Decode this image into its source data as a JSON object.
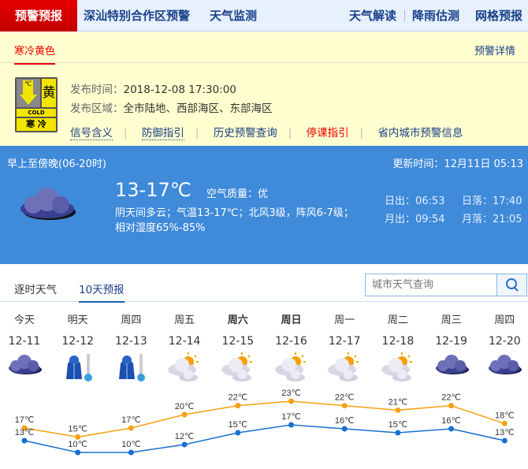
{
  "nav": {
    "active": "预警预报",
    "items": [
      "深汕特别合作区预警",
      "天气监测"
    ],
    "right": [
      "天气解读",
      "降雨估测",
      "网格预报"
    ]
  },
  "warning": {
    "tab": "寒冷黄色",
    "detail_link": "预警详情",
    "sign": {
      "unit": "℃",
      "level": "黄",
      "en": "COLD",
      "name": "寒 冷"
    },
    "time_label": "发布时间：",
    "time": "2018-12-08 17:30:00",
    "area_label": "发布区域：",
    "area": "全市陆地、西部海区、东部海区",
    "links": [
      "信号含义",
      "防御指引",
      "历史预警查询",
      "停课指引",
      "省内城市预警信息"
    ]
  },
  "today": {
    "period": "早上至傍晚(06-20时)",
    "update": "更新时间：12月11日 05:13",
    "temp": "13-17℃",
    "aq": "空气质量：优",
    "desc1": "阴天间多云；气温13-17℃；北风3级，阵风6-7级；",
    "desc2": "相对湿度65%-85%",
    "sunrise": "日出：06:53",
    "sunset": "日落：17:40",
    "moonrise": "月出：09:54",
    "moonset": "月落：21:05"
  },
  "tabs": [
    "逐时天气",
    "10天预报"
  ],
  "search": {
    "placeholder": "城市天气查询"
  },
  "forecast": [
    {
      "day": "今天",
      "date": "12-11",
      "icon": "cloud",
      "high": 17,
      "low": 13,
      "bold": false
    },
    {
      "day": "明天",
      "date": "12-12",
      "icon": "cold",
      "high": 15,
      "low": 10,
      "bold": false
    },
    {
      "day": "周四",
      "date": "12-13",
      "icon": "cold",
      "high": 17,
      "low": 10,
      "bold": false
    },
    {
      "day": "周五",
      "date": "12-14",
      "icon": "sun-cloud",
      "high": 20,
      "low": 12,
      "bold": false
    },
    {
      "day": "周六",
      "date": "12-15",
      "icon": "sun-cloud",
      "high": 22,
      "low": 15,
      "bold": true
    },
    {
      "day": "周日",
      "date": "12-16",
      "icon": "sun-cloud",
      "high": 23,
      "low": 17,
      "bold": true
    },
    {
      "day": "周一",
      "date": "12-17",
      "icon": "sun-cloud",
      "high": 22,
      "low": 16,
      "bold": false
    },
    {
      "day": "周二",
      "date": "12-18",
      "icon": "sun-cloud",
      "high": 21,
      "low": 15,
      "bold": false
    },
    {
      "day": "周三",
      "date": "12-19",
      "icon": "cloud",
      "high": 22,
      "low": 16,
      "bold": false
    },
    {
      "day": "周四",
      "date": "12-20",
      "icon": "cloud",
      "high": 18,
      "low": 13,
      "bold": false
    }
  ],
  "unit": "℃",
  "colors": {
    "high": "#f5a10f",
    "low": "#1670d0",
    "accent": "#e00000",
    "panel": "#3f8ad9"
  }
}
